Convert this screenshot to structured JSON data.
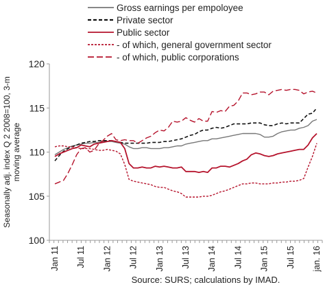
{
  "chart_data": {
    "type": "line",
    "ylabel": "Seasonally adj. index Q 2 2008=100, 3-m moving average",
    "ylim": [
      100,
      120
    ],
    "yticks": [
      100,
      105,
      110,
      115,
      120
    ],
    "grid": false,
    "legend_position": "top",
    "source": "Source: SURS; calculations by IMAD.",
    "x_tick_labels": [
      "Jan 11",
      "Jul 11",
      "Jan 12",
      "Jul 12",
      "Jan 13",
      "Jul 13",
      "Jan 14",
      "Jul 14",
      "Jan 15",
      "Jul 15",
      "jan. 16"
    ],
    "x": [
      "2011-01",
      "2011-02",
      "2011-03",
      "2011-04",
      "2011-05",
      "2011-06",
      "2011-07",
      "2011-08",
      "2011-09",
      "2011-10",
      "2011-11",
      "2011-12",
      "2012-01",
      "2012-02",
      "2012-03",
      "2012-04",
      "2012-05",
      "2012-06",
      "2012-07",
      "2012-08",
      "2012-09",
      "2012-10",
      "2012-11",
      "2012-12",
      "2013-01",
      "2013-02",
      "2013-03",
      "2013-04",
      "2013-05",
      "2013-06",
      "2013-07",
      "2013-08",
      "2013-09",
      "2013-10",
      "2013-11",
      "2013-12",
      "2014-01",
      "2014-02",
      "2014-03",
      "2014-04",
      "2014-05",
      "2014-06",
      "2014-07",
      "2014-08",
      "2014-09",
      "2014-10",
      "2014-11",
      "2014-12",
      "2015-01",
      "2015-02",
      "2015-03",
      "2015-04",
      "2015-05",
      "2015-06",
      "2015-07",
      "2015-08",
      "2015-09",
      "2015-10",
      "2015-11",
      "2015-12",
      "2016-01"
    ],
    "series": [
      {
        "name": "Gross earnings per empoloyee",
        "color": "#777777",
        "dash": "solid",
        "values": [
          109.7,
          110.0,
          110.3,
          110.5,
          110.7,
          110.8,
          110.9,
          111.0,
          111.0,
          111.1,
          111.1,
          111.2,
          111.2,
          111.2,
          111.1,
          111.0,
          110.9,
          110.6,
          110.4,
          110.4,
          110.5,
          110.5,
          110.4,
          110.4,
          110.4,
          110.5,
          110.5,
          110.6,
          110.7,
          110.7,
          110.9,
          111.0,
          111.1,
          111.2,
          111.3,
          111.3,
          111.5,
          111.5,
          111.6,
          111.7,
          111.8,
          111.9,
          112.0,
          112.1,
          112.1,
          112.1,
          112.1,
          112.0,
          111.7,
          111.7,
          111.8,
          112.1,
          112.3,
          112.4,
          112.5,
          112.5,
          112.7,
          112.8,
          113.0,
          113.5,
          113.7
        ]
      },
      {
        "name": "Private sector",
        "color": "#111111",
        "dash": "dashed",
        "values": [
          109.0,
          109.6,
          110.1,
          110.4,
          110.6,
          110.8,
          111.0,
          111.1,
          111.2,
          111.2,
          111.3,
          111.3,
          111.3,
          111.3,
          111.2,
          111.1,
          111.0,
          111.0,
          111.0,
          111.0,
          111.0,
          111.0,
          111.1,
          111.1,
          111.1,
          111.2,
          111.2,
          111.3,
          111.4,
          111.5,
          111.7,
          111.9,
          112.0,
          112.3,
          112.5,
          112.5,
          112.7,
          112.8,
          112.7,
          112.8,
          113.0,
          113.2,
          113.2,
          113.2,
          113.2,
          113.3,
          113.3,
          113.3,
          113.1,
          113.0,
          113.0,
          113.2,
          113.3,
          113.2,
          113.3,
          113.3,
          113.3,
          113.8,
          114.3,
          114.4,
          115.0
        ]
      },
      {
        "name": "Public sector",
        "color": "#b5122b",
        "dash": "solid",
        "values": [
          109.5,
          109.8,
          110.0,
          110.2,
          110.4,
          110.5,
          110.8,
          110.7,
          110.6,
          110.9,
          111.0,
          111.1,
          111.2,
          111.3,
          111.2,
          111.1,
          110.4,
          108.7,
          108.2,
          108.2,
          108.3,
          108.2,
          108.2,
          108.4,
          108.3,
          108.4,
          108.3,
          108.2,
          108.2,
          108.3,
          107.8,
          107.8,
          107.8,
          107.7,
          107.8,
          107.7,
          108.2,
          108.2,
          108.4,
          108.4,
          108.3,
          108.5,
          108.7,
          109.0,
          109.2,
          109.7,
          109.9,
          109.8,
          109.6,
          109.5,
          109.6,
          109.8,
          109.9,
          110.0,
          110.1,
          110.2,
          110.3,
          110.3,
          110.8,
          111.6,
          112.1
        ]
      },
      {
        "name": "- of which, general government sector",
        "color": "#b5122b",
        "dash": "dotted",
        "values": [
          110.6,
          110.7,
          110.7,
          110.6,
          110.6,
          110.5,
          110.4,
          110.4,
          110.4,
          110.3,
          110.2,
          110.2,
          110.3,
          110.2,
          110.1,
          109.8,
          108.6,
          106.9,
          106.7,
          106.6,
          106.5,
          106.4,
          106.3,
          106.1,
          106.0,
          106.0,
          105.8,
          105.6,
          105.5,
          105.3,
          104.9,
          104.9,
          104.9,
          104.9,
          105.0,
          105.0,
          105.1,
          105.3,
          105.5,
          105.6,
          105.8,
          106.0,
          106.2,
          106.4,
          106.4,
          106.5,
          106.5,
          106.4,
          106.4,
          106.4,
          106.5,
          106.5,
          106.6,
          106.6,
          106.7,
          106.7,
          106.8,
          107.0,
          108.3,
          109.5,
          111.0
        ]
      },
      {
        "name": "- of which, public corporations",
        "color": "#b5122b",
        "dash": "longdash",
        "values": [
          106.4,
          106.6,
          106.8,
          107.6,
          108.6,
          109.7,
          110.4,
          110.5,
          110.0,
          110.2,
          110.9,
          111.3,
          111.8,
          112.1,
          111.4,
          111.3,
          111.4,
          111.3,
          111.3,
          111.0,
          111.3,
          111.6,
          111.8,
          112.2,
          112.5,
          112.4,
          112.8,
          113.5,
          113.4,
          113.5,
          113.9,
          113.6,
          113.4,
          113.8,
          113.5,
          113.5,
          114.6,
          114.5,
          114.7,
          114.6,
          115.2,
          115.3,
          115.8,
          116.7,
          116.7,
          116.5,
          116.6,
          116.8,
          116.8,
          116.5,
          116.9,
          117.0,
          117.1,
          117.0,
          117.1,
          117.1,
          117.0,
          116.6,
          116.8,
          116.9,
          116.7
        ]
      }
    ]
  }
}
